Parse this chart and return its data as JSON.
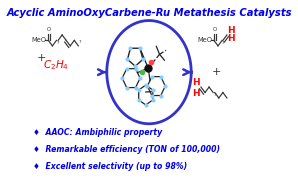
{
  "title": "Acyclic AminoOxyCarbene-Ru Metathesis Catalysts",
  "title_color": "#0000EE",
  "title_fontsize": 7.2,
  "bg_color": "#FFFFFF",
  "bullet_color": "#0000EE",
  "bullet_points": [
    "♦  AAOC: Ambiphilic property",
    "♦  Remarkable efficiency (TON of 100,000)",
    "♦  Excellent selectivity (up to 98%)"
  ],
  "bullet_fontsize": 5.6,
  "arrow_color": "#3333CC",
  "circle_color": "#3333CC",
  "c2h4_color": "#FF0000",
  "product_h_color": "#FF0000",
  "dark_color": "#333333",
  "chain_color": "#555555",
  "ru_color": "#006600",
  "o_color": "#FF4444",
  "cl_color": "#44BB44",
  "cyan_color": "#88CCFF"
}
